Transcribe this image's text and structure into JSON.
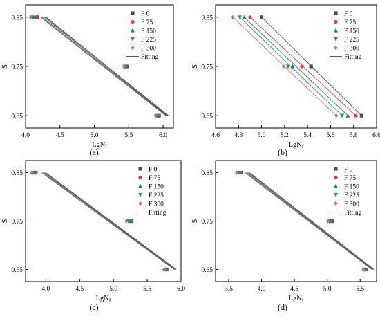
{
  "legend_labels": [
    "F 0",
    "F 75",
    "F 150",
    "F 225",
    "F 300",
    "Fitting"
  ],
  "series_colors": {
    "F 0": "#4d4d4d",
    "F 75": "#e8383d",
    "F 150": "#1f77b4",
    "F 225": "#2ca02c",
    "F 300": "#b865d6"
  },
  "series_markers": {
    "F 0": "square",
    "F 75": "circle",
    "F 150": "triangle-up",
    "F 225": "triangle-down",
    "F 300": "diamond"
  },
  "chart_data": [
    {
      "panel_label": "(a)",
      "type": "scatter",
      "title": "",
      "xlabel_base": "LgN",
      "xlabel_sub": "f",
      "ylabel": "S",
      "xlim": [
        4.0,
        6.15
      ],
      "ylim": [
        0.625,
        0.875
      ],
      "xticks": [
        "4.0",
        "4.5",
        "5.0",
        "5.5",
        "6.0"
      ],
      "xtick_values": [
        4.0,
        4.5,
        5.0,
        5.5,
        6.0
      ],
      "yticks": [
        "0.65",
        "0.75",
        "0.85"
      ],
      "ytick_values": [
        0.65,
        0.75,
        0.85
      ],
      "legend_position": "top-right",
      "grid": false,
      "series": [
        {
          "name": "F 0",
          "points": [
            [
              4.17,
              0.85
            ],
            [
              5.47,
              0.75
            ],
            [
              5.94,
              0.65
            ]
          ],
          "fit": [
            [
              4.3,
              0.85
            ],
            [
              6.07,
              0.65
            ]
          ]
        },
        {
          "name": "F 75",
          "points": [
            [
              4.16,
              0.85
            ],
            [
              5.46,
              0.75
            ],
            [
              5.93,
              0.65
            ]
          ],
          "fit": [
            [
              4.29,
              0.85
            ],
            [
              6.08,
              0.65
            ]
          ]
        },
        {
          "name": "F 150",
          "points": [
            [
              4.12,
              0.85
            ],
            [
              5.45,
              0.75
            ],
            [
              5.92,
              0.65
            ]
          ],
          "fit": [
            [
              4.27,
              0.85
            ],
            [
              6.06,
              0.65
            ]
          ]
        },
        {
          "name": "F 225",
          "points": [
            [
              4.09,
              0.85
            ],
            [
              5.44,
              0.75
            ],
            [
              5.9,
              0.65
            ]
          ],
          "fit": [
            [
              4.24,
              0.85
            ],
            [
              6.05,
              0.65
            ]
          ]
        },
        {
          "name": "F 300",
          "points": [
            [
              4.07,
              0.85
            ],
            [
              5.43,
              0.75
            ],
            [
              5.89,
              0.65
            ]
          ],
          "fit": [
            [
              4.22,
              0.85
            ],
            [
              6.04,
              0.65
            ]
          ]
        }
      ]
    },
    {
      "panel_label": "(b)",
      "type": "scatter",
      "title": "",
      "xlabel_base": "LgN",
      "xlabel_sub": "f",
      "ylabel": "S",
      "xlim": [
        4.6,
        6.0
      ],
      "ylim": [
        0.625,
        0.875
      ],
      "xticks": [
        "4.6",
        "4.8",
        "5.0",
        "5.2",
        "5.4",
        "5.6",
        "5.8",
        "6.0"
      ],
      "xtick_values": [
        4.6,
        4.8,
        5.0,
        5.2,
        5.4,
        5.6,
        5.8,
        6.0
      ],
      "yticks": [
        "0.65",
        "0.75",
        "0.85"
      ],
      "ytick_values": [
        0.65,
        0.75,
        0.85
      ],
      "legend_position": "top-right",
      "grid": false,
      "series": [
        {
          "name": "F 0",
          "points": [
            [
              5.0,
              0.85
            ],
            [
              5.43,
              0.75
            ],
            [
              5.87,
              0.65
            ]
          ],
          "fit": [
            [
              5.0,
              0.85
            ],
            [
              5.87,
              0.65
            ]
          ]
        },
        {
          "name": "F 75",
          "points": [
            [
              4.9,
              0.85
            ],
            [
              5.35,
              0.75
            ],
            [
              5.82,
              0.65
            ]
          ],
          "fit": [
            [
              4.9,
              0.85
            ],
            [
              5.82,
              0.65
            ]
          ]
        },
        {
          "name": "F 150",
          "points": [
            [
              4.85,
              0.85
            ],
            [
              5.27,
              0.75
            ],
            [
              5.75,
              0.65
            ]
          ],
          "fit": [
            [
              4.85,
              0.85
            ],
            [
              5.75,
              0.65
            ]
          ]
        },
        {
          "name": "F 225",
          "points": [
            [
              4.81,
              0.85
            ],
            [
              5.23,
              0.75
            ],
            [
              5.7,
              0.65
            ]
          ],
          "fit": [
            [
              4.81,
              0.85
            ],
            [
              5.7,
              0.65
            ]
          ]
        },
        {
          "name": "F 300",
          "points": [
            [
              4.75,
              0.85
            ],
            [
              5.19,
              0.75
            ],
            [
              5.65,
              0.65
            ]
          ],
          "fit": [
            [
              4.75,
              0.85
            ],
            [
              5.65,
              0.65
            ]
          ]
        }
      ]
    },
    {
      "panel_label": "(c)",
      "type": "scatter",
      "title": "",
      "xlabel_base": "LgN",
      "xlabel_sub": "f",
      "ylabel": "S",
      "xlim": [
        3.7,
        6.0
      ],
      "ylim": [
        0.625,
        0.875
      ],
      "xticks": [
        "4.0",
        "4.5",
        "5.0",
        "5.5",
        "6.0"
      ],
      "xtick_values": [
        4.0,
        4.5,
        5.0,
        5.5,
        6.0
      ],
      "yticks": [
        "0.65",
        "0.75",
        "0.85"
      ],
      "ytick_values": [
        0.65,
        0.75,
        0.85
      ],
      "legend_position": "top-right",
      "grid": false,
      "series": [
        {
          "name": "F 0",
          "points": [
            [
              3.85,
              0.85
            ],
            [
              5.27,
              0.75
            ],
            [
              5.8,
              0.65
            ]
          ],
          "fit": [
            [
              4.0,
              0.85
            ],
            [
              5.93,
              0.65
            ]
          ]
        },
        {
          "name": "F 75",
          "points": [
            [
              3.84,
              0.85
            ],
            [
              5.26,
              0.75
            ],
            [
              5.79,
              0.65
            ]
          ],
          "fit": [
            [
              3.99,
              0.85
            ],
            [
              5.93,
              0.65
            ]
          ]
        },
        {
          "name": "F 150",
          "points": [
            [
              3.83,
              0.85
            ],
            [
              5.25,
              0.75
            ],
            [
              5.78,
              0.65
            ]
          ],
          "fit": [
            [
              3.98,
              0.85
            ],
            [
              5.92,
              0.65
            ]
          ]
        },
        {
          "name": "F 225",
          "points": [
            [
              3.81,
              0.85
            ],
            [
              5.22,
              0.75
            ],
            [
              5.77,
              0.65
            ]
          ],
          "fit": [
            [
              3.96,
              0.85
            ],
            [
              5.91,
              0.65
            ]
          ]
        },
        {
          "name": "F 300",
          "points": [
            [
              3.79,
              0.85
            ],
            [
              5.19,
              0.75
            ],
            [
              5.75,
              0.65
            ]
          ],
          "fit": [
            [
              3.94,
              0.85
            ],
            [
              5.9,
              0.65
            ]
          ]
        }
      ]
    },
    {
      "panel_label": "(d)",
      "type": "scatter",
      "title": "",
      "xlabel_base": "LgN",
      "xlabel_sub": "f",
      "ylabel": "S",
      "xlim": [
        3.3,
        5.75
      ],
      "ylim": [
        0.625,
        0.875
      ],
      "xticks": [
        "3.5",
        "4.0",
        "4.5",
        "5.0",
        "5.5"
      ],
      "xtick_values": [
        3.5,
        4.0,
        4.5,
        5.0,
        5.5
      ],
      "yticks": [
        "0.65",
        "0.75",
        "0.85"
      ],
      "ytick_values": [
        0.65,
        0.75,
        0.85
      ],
      "legend_position": "top-right",
      "grid": false,
      "series": [
        {
          "name": "F 0",
          "points": [
            [
              3.69,
              0.85
            ],
            [
              5.07,
              0.75
            ],
            [
              5.59,
              0.65
            ]
          ],
          "fit": [
            [
              3.82,
              0.85
            ],
            [
              5.71,
              0.65
            ]
          ]
        },
        {
          "name": "F 75",
          "points": [
            [
              3.68,
              0.85
            ],
            [
              5.06,
              0.75
            ],
            [
              5.58,
              0.65
            ]
          ],
          "fit": [
            [
              3.81,
              0.85
            ],
            [
              5.71,
              0.65
            ]
          ]
        },
        {
          "name": "F 150",
          "points": [
            [
              3.66,
              0.85
            ],
            [
              5.05,
              0.75
            ],
            [
              5.57,
              0.65
            ]
          ],
          "fit": [
            [
              3.79,
              0.85
            ],
            [
              5.7,
              0.65
            ]
          ]
        },
        {
          "name": "F 225",
          "points": [
            [
              3.64,
              0.85
            ],
            [
              5.03,
              0.75
            ],
            [
              5.56,
              0.65
            ]
          ],
          "fit": [
            [
              3.77,
              0.85
            ],
            [
              5.69,
              0.65
            ]
          ]
        },
        {
          "name": "F 300",
          "points": [
            [
              3.62,
              0.85
            ],
            [
              5.01,
              0.75
            ],
            [
              5.55,
              0.65
            ]
          ],
          "fit": [
            [
              3.75,
              0.85
            ],
            [
              5.68,
              0.65
            ]
          ]
        }
      ]
    }
  ]
}
